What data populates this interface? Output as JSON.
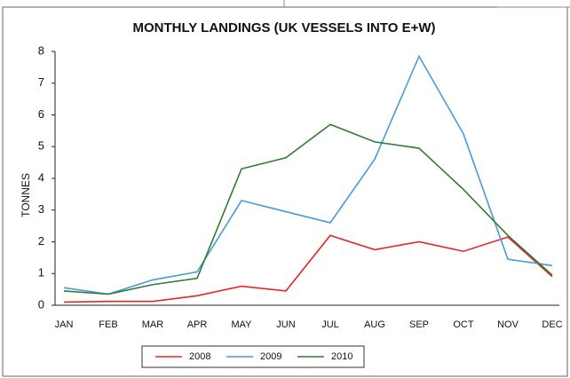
{
  "chart_data": {
    "type": "line",
    "title": "MONTHLY LANDINGS (UK VESSELS INTO E+W)",
    "y_label": "TONNES",
    "categories": [
      "JAN",
      "FEB",
      "MAR",
      "APR",
      "MAY",
      "JUN",
      "JUL",
      "AUG",
      "SEP",
      "OCT",
      "NOV",
      "DEC"
    ],
    "series": [
      {
        "name": "2008",
        "color": "#e8252a",
        "values": [
          0.1,
          0.12,
          0.12,
          0.3,
          0.6,
          0.45,
          2.2,
          1.75,
          2.0,
          1.7,
          2.15,
          0.9
        ]
      },
      {
        "name": "2009",
        "color": "#4a9ad8",
        "values": [
          0.55,
          0.35,
          0.8,
          1.05,
          3.3,
          2.95,
          2.6,
          4.6,
          7.85,
          5.4,
          1.45,
          1.25
        ]
      },
      {
        "name": "2010",
        "color": "#2e7d32",
        "values": [
          0.45,
          0.35,
          0.65,
          0.85,
          4.3,
          4.65,
          5.7,
          5.15,
          4.95,
          3.65,
          2.2,
          0.95
        ]
      }
    ],
    "ylim": [
      0,
      8
    ],
    "yticks": [
      0,
      1,
      2,
      3,
      4,
      5,
      6,
      7,
      8
    ],
    "grid": false,
    "legend": "bottom"
  }
}
